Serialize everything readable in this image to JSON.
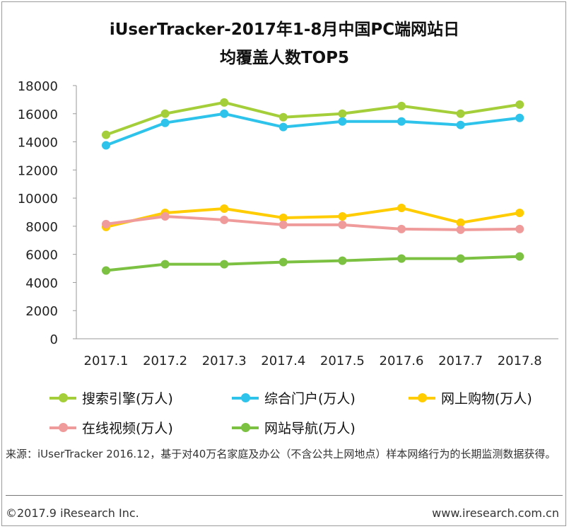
{
  "chart_data": {
    "type": "line",
    "title_line1": "iUserTracker-2017年1-8月中国PC端网站日",
    "title_line2": "均覆盖人数TOP5",
    "categories": [
      "2017.1",
      "2017.2",
      "2017.3",
      "2017.4",
      "2017.5",
      "2017.6",
      "2017.7",
      "2017.8"
    ],
    "ylim": [
      0,
      18000
    ],
    "yticks": [
      0,
      2000,
      4000,
      6000,
      8000,
      10000,
      12000,
      14000,
      16000,
      18000
    ],
    "series": [
      {
        "name": "搜索引擎(万人)",
        "color": "#a5cf3a",
        "values": [
          14500,
          16000,
          16800,
          15750,
          16000,
          16550,
          16000,
          16650
        ]
      },
      {
        "name": "综合门户(万人)",
        "color": "#2ec3ea",
        "values": [
          13750,
          15350,
          16000,
          15050,
          15450,
          15450,
          15200,
          15700
        ]
      },
      {
        "name": "网上购物(万人)",
        "color": "#ffcc00",
        "values": [
          7950,
          8950,
          9250,
          8600,
          8700,
          9300,
          8250,
          8950
        ]
      },
      {
        "name": "在线视频(万人)",
        "color": "#f09b9b",
        "values": [
          8150,
          8700,
          8450,
          8100,
          8100,
          7800,
          7750,
          7800
        ]
      },
      {
        "name": "网站导航(万人)",
        "color": "#7cc142",
        "values": [
          4850,
          5300,
          5300,
          5450,
          5550,
          5700,
          5700,
          5850
        ]
      }
    ]
  },
  "note": "来源：iUserTracker 2016.12，基于对40万名家庭及办公（不含公共上网地点）样本网络行为的长期监测数据获得。",
  "footer": {
    "copyright": "©2017.9  iResearch Inc.",
    "website": "www.iresearch.com.cn"
  }
}
